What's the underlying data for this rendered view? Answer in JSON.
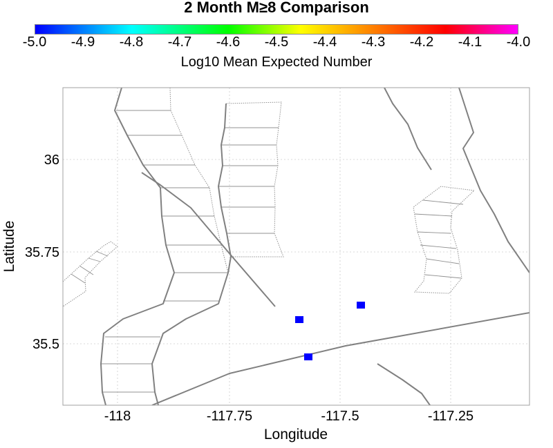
{
  "title": "2 Month M≥8 Comparison",
  "colorbar": {
    "label": "Log10 Mean Expected Number",
    "ticks": [
      "-5.0",
      "-4.9",
      "-4.8",
      "-4.7",
      "-4.6",
      "-4.5",
      "-4.4",
      "-4.3",
      "-4.2",
      "-4.1",
      "-4.0"
    ],
    "colors": [
      "#0000ff",
      "#00ffff",
      "#00ff00",
      "#ffff00",
      "#ff8000",
      "#ff0000",
      "#ff00ff"
    ]
  },
  "axes": {
    "xlabel": "Longitude",
    "ylabel": "Latitude",
    "x_ticks": [
      "-118",
      "-117.75",
      "-117.5",
      "-117.25"
    ],
    "y_ticks": [
      "36",
      "35.75",
      "35.5"
    ]
  },
  "colors": {
    "fault": "#808080",
    "marker": "#0000ff",
    "grid": "#cccccc"
  }
}
